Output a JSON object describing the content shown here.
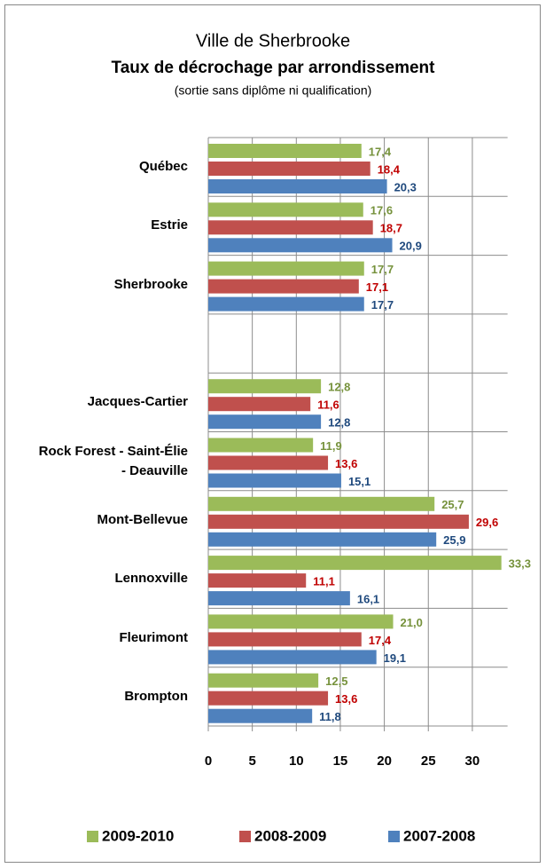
{
  "chart_data": {
    "type": "hbar",
    "title": "Ville de Sherbrooke",
    "subtitle": "Taux de décrochage par arrondissement",
    "note": "(sortie sans diplôme ni qualification)",
    "categories": [
      "Québec",
      "Estrie",
      "Sherbrooke",
      null,
      "Jacques-Cartier",
      "Rock Forest - Saint-Élie - Deauville",
      "Mont-Bellevue",
      "Lennoxville",
      "Fleurimont",
      "Brompton"
    ],
    "series": [
      {
        "name": "2009-2010",
        "color": "#9bbb59",
        "label_color": "#76923c",
        "values": [
          17.4,
          17.6,
          17.7,
          null,
          12.8,
          11.9,
          25.7,
          33.3,
          21.0,
          12.5
        ],
        "value_labels": [
          "17,4",
          "17,6",
          "17,7",
          null,
          "12,8",
          "11,9",
          "25,7",
          "33,3",
          "21,0",
          "12,5"
        ]
      },
      {
        "name": "2008-2009",
        "color": "#c0504d",
        "label_color": "#c00000",
        "values": [
          18.4,
          18.7,
          17.1,
          null,
          11.6,
          13.6,
          29.6,
          11.1,
          17.4,
          13.6
        ],
        "value_labels": [
          "18,4",
          "18,7",
          "17,1",
          null,
          "11,6",
          "13,6",
          "29,6",
          "11,1",
          "17,4",
          "13,6"
        ]
      },
      {
        "name": "2007-2008",
        "color": "#4f81bd",
        "label_color": "#1f497d",
        "values": [
          20.3,
          20.9,
          17.7,
          null,
          12.8,
          15.1,
          25.9,
          16.1,
          19.1,
          11.8
        ],
        "value_labels": [
          "20,3",
          "20,9",
          "17,7",
          null,
          "12,8",
          "15,1",
          "25,9",
          "16,1",
          "19,1",
          "11,8"
        ]
      }
    ],
    "xlim": [
      0,
      34
    ],
    "xticks": [
      0,
      5,
      10,
      15,
      20,
      25,
      30
    ],
    "grid": true,
    "legend": "bottom"
  }
}
